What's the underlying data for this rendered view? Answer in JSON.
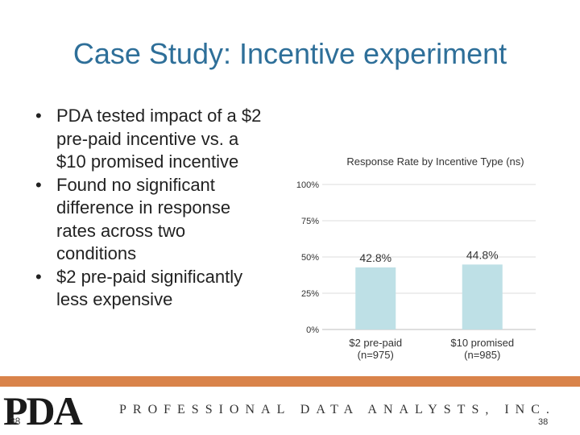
{
  "slide": {
    "title": "Case Study: Incentive experiment",
    "bullets": [
      "PDA tested impact of a $2 pre-paid incentive vs. a $10 promised incentive",
      "Found no significant difference in response rates across two conditions",
      "$2 pre-paid significantly less expensive"
    ],
    "bullet_symbol": "•"
  },
  "chart_data": {
    "type": "bar",
    "title": "Response Rate by Incentive Type (ns)",
    "categories": [
      [
        "$2 pre-paid",
        "(n=975)"
      ],
      [
        "$10 promised",
        "(n=985)"
      ]
    ],
    "values": [
      42.8,
      44.8
    ],
    "value_labels": [
      "42.8%",
      "44.8%"
    ],
    "yticks": [
      "0%",
      "25%",
      "50%",
      "75%",
      "100%"
    ],
    "ytick_values": [
      0,
      25,
      50,
      75,
      100
    ],
    "ylim": [
      0,
      100
    ],
    "xlabel": "",
    "ylabel": "",
    "bar_color": "#BEE0E6",
    "grid": true
  },
  "footer": {
    "logo_text": "PDA",
    "company_name": "PROFESSIONAL DATA ANALYSTS, INC.",
    "page_number_left": "38",
    "page_number_right": "38",
    "accent_color": "#D9834A"
  }
}
